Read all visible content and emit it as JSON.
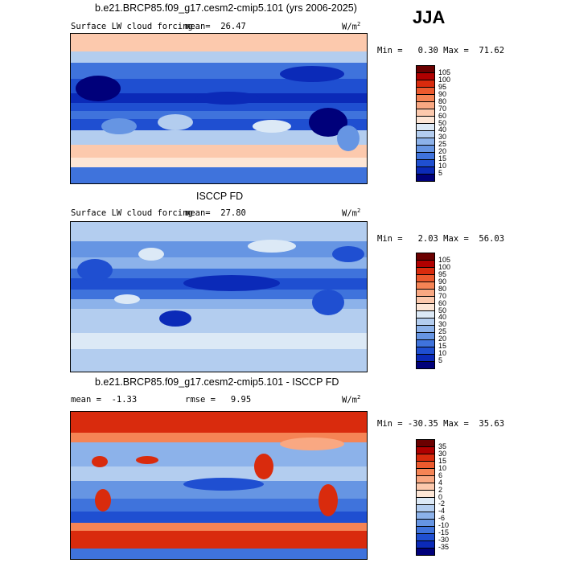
{
  "season": "JJA",
  "units": "W/m",
  "units_exp": "2",
  "panels": [
    {
      "title": "b.e21.BRCP85.f09_g17.cesm2-cmip5.101 (yrs 2006-2025)",
      "subtitle": "Surface LW cloud forcing",
      "mean_text": "mean=  26.47",
      "minmax_text": "Min =   0.30 Max =  71.62",
      "colorbar_labels": [
        "105",
        "100",
        "95",
        "90",
        "80",
        "70",
        "60",
        "50",
        "40",
        "30",
        "25",
        "20",
        "15",
        "10",
        "5"
      ]
    },
    {
      "title": "ISCCP FD",
      "subtitle": "Surface LW cloud forcing",
      "mean_text": "mean=  27.80",
      "minmax_text": "Min =   2.03 Max =  56.03",
      "colorbar_labels": [
        "105",
        "100",
        "95",
        "90",
        "80",
        "70",
        "60",
        "50",
        "40",
        "30",
        "25",
        "20",
        "15",
        "10",
        "5"
      ]
    },
    {
      "title": "b.e21.BRCP85.f09_g17.cesm2-cmip5.101 - ISCCP FD",
      "mean_text": "mean =  -1.33",
      "rmse_text": "rmse =   9.95",
      "minmax_text": "Min = -30.35 Max =  35.63",
      "colorbar_labels": [
        "35",
        "30",
        "15",
        "10",
        "6",
        "4",
        "2",
        "0",
        "-2",
        "-4",
        "-6",
        "-10",
        "-15",
        "-30",
        "-35"
      ]
    }
  ],
  "colors": {
    "abs_scale": [
      "#6b0000",
      "#b00000",
      "#d92b0d",
      "#ec5a2e",
      "#f58455",
      "#f9a882",
      "#fcc9ad",
      "#fde6d6",
      "#dce9f6",
      "#b3cdef",
      "#8cb2ea",
      "#6695e3",
      "#3f73dc",
      "#1f4fd1",
      "#0b2ab8",
      "#00007a"
    ],
    "diff_scale": [
      "#6b0000",
      "#b00000",
      "#d92b0d",
      "#ec5a2e",
      "#f58455",
      "#f9a882",
      "#fcc9ad",
      "#fde6d6",
      "#dce9f6",
      "#b3cdef",
      "#8cb2ea",
      "#6695e3",
      "#3f73dc",
      "#1f4fd1",
      "#0b2ab8",
      "#00007a"
    ]
  }
}
